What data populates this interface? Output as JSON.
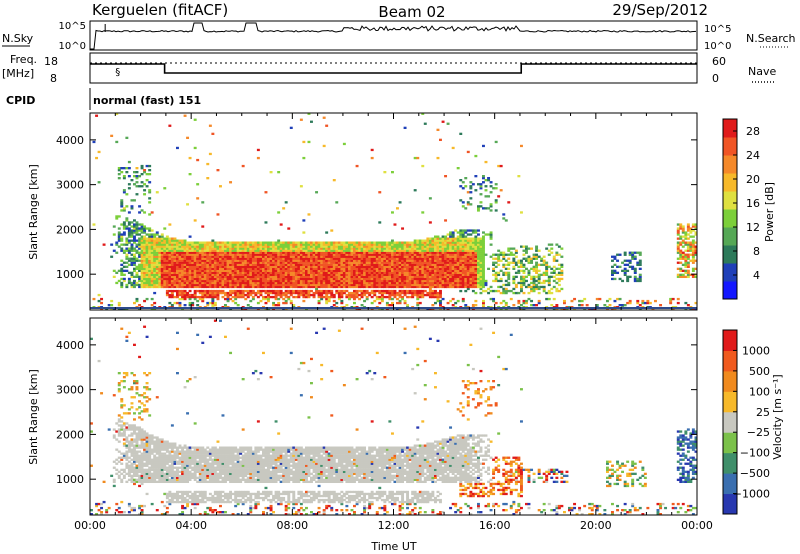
{
  "header": {
    "station": "Kerguelen (fitACF)",
    "beam": "Beam 02",
    "date": "29/Sep/2012"
  },
  "strips": {
    "nsky_label": "N.Sky",
    "nsky_ticks": [
      "10^5",
      "10^0"
    ],
    "nsearch_label": "N.Search",
    "freq_label": "Freq.",
    "freq_unit": "[MHz]",
    "freq_ticks": [
      "18",
      "8"
    ],
    "nave_label": "Nave",
    "nave_ticks": [
      "60",
      "0"
    ],
    "cpid_label": "CPID",
    "cpid_text": "normal (fast) 151"
  },
  "chart_data": [
    {
      "type": "heatmap",
      "name": "power",
      "ylabel": "Slant Range [km]",
      "xlabel": "",
      "xlim": [
        0,
        24
      ],
      "ylim": [
        200,
        4600
      ],
      "yticks": [
        "1000",
        "2000",
        "3000",
        "4000"
      ],
      "colorbar": {
        "label": "Power [dB]",
        "ticks": [
          "4",
          "8",
          "12",
          "16",
          "20",
          "24",
          "28"
        ],
        "colors": [
          "#1418ff",
          "#1f3fb8",
          "#2d7a5a",
          "#56a856",
          "#7ccf3a",
          "#dfe040",
          "#f7b92a",
          "#f5892a",
          "#f05525",
          "#e01a1a"
        ],
        "range": [
          0,
          30
        ]
      }
    },
    {
      "type": "heatmap",
      "name": "velocity",
      "ylabel": "Slant Range [km]",
      "xlabel": "Time UT",
      "xlim": [
        0,
        24
      ],
      "ylim": [
        200,
        4600
      ],
      "yticks": [
        "1000",
        "2000",
        "3000",
        "4000"
      ],
      "xticks": [
        "00:00",
        "04:00",
        "08:00",
        "12:00",
        "16:00",
        "20:00",
        "00:00"
      ],
      "colorbar": {
        "label": "Velocity [m s⁻¹]",
        "ticks": [
          "1000",
          "500",
          "100",
          "25",
          "−25",
          "−100",
          "−500",
          "−1000"
        ],
        "colors": [
          "#2838b0",
          "#3a6fb0",
          "#3f8f6a",
          "#7bc14a",
          "#c8c8c0",
          "#f7b92a",
          "#f08a1e",
          "#f05a1e",
          "#e01a1a"
        ]
      }
    }
  ]
}
